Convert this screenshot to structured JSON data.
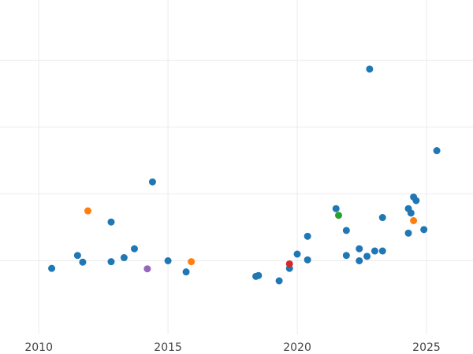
{
  "chart_data": {
    "type": "scatter",
    "title": "",
    "xlabel": "",
    "ylabel": "",
    "xlim": [
      2008.5,
      2026.8
    ],
    "ylim": [
      -1.65,
      5.85
    ],
    "x_ticks": [
      2010,
      2015,
      2020,
      2025
    ],
    "x_tick_labels": [
      "2010",
      "2015",
      "2020",
      "2025"
    ],
    "y_gridlines": [
      0,
      1.5,
      3,
      4.5
    ],
    "show_y_tick_labels": false,
    "grid": true,
    "legend": "none",
    "series": [
      {
        "color": "#1f77b4",
        "points": [
          {
            "x": 2010.5,
            "y": -0.17
          },
          {
            "x": 2011.5,
            "y": 0.12
          },
          {
            "x": 2011.7,
            "y": -0.03
          },
          {
            "x": 2012.8,
            "y": 0.87
          },
          {
            "x": 2012.8,
            "y": -0.02
          },
          {
            "x": 2013.3,
            "y": 0.07
          },
          {
            "x": 2013.7,
            "y": 0.27
          },
          {
            "x": 2014.4,
            "y": 1.77
          },
          {
            "x": 2015.0,
            "y": 0.0
          },
          {
            "x": 2015.7,
            "y": -0.25
          },
          {
            "x": 2018.4,
            "y": -0.35
          },
          {
            "x": 2018.5,
            "y": -0.33
          },
          {
            "x": 2019.3,
            "y": -0.45
          },
          {
            "x": 2019.7,
            "y": -0.17
          },
          {
            "x": 2020.0,
            "y": 0.15
          },
          {
            "x": 2020.4,
            "y": 0.02
          },
          {
            "x": 2020.4,
            "y": 0.55
          },
          {
            "x": 2021.5,
            "y": 1.17
          },
          {
            "x": 2021.9,
            "y": 0.68
          },
          {
            "x": 2021.9,
            "y": 0.12
          },
          {
            "x": 2022.4,
            "y": 0.27
          },
          {
            "x": 2022.4,
            "y": 0.0
          },
          {
            "x": 2022.7,
            "y": 0.1
          },
          {
            "x": 2022.8,
            "y": 4.3
          },
          {
            "x": 2023.0,
            "y": 0.22
          },
          {
            "x": 2023.3,
            "y": 0.22
          },
          {
            "x": 2023.3,
            "y": 0.97
          },
          {
            "x": 2024.3,
            "y": 0.62
          },
          {
            "x": 2024.3,
            "y": 1.17
          },
          {
            "x": 2024.4,
            "y": 1.07
          },
          {
            "x": 2024.5,
            "y": 1.43
          },
          {
            "x": 2024.6,
            "y": 1.35
          },
          {
            "x": 2024.9,
            "y": 0.7
          },
          {
            "x": 2025.4,
            "y": 2.47
          }
        ]
      },
      {
        "color": "#ff7f0e",
        "points": [
          {
            "x": 2011.9,
            "y": 1.12
          },
          {
            "x": 2015.9,
            "y": -0.02
          },
          {
            "x": 2024.5,
            "y": 0.9
          }
        ]
      },
      {
        "color": "#2ca02c",
        "points": [
          {
            "x": 2021.6,
            "y": 1.02
          }
        ]
      },
      {
        "color": "#d62728",
        "points": [
          {
            "x": 2019.7,
            "y": -0.07
          }
        ]
      },
      {
        "color": "#9467bd",
        "points": [
          {
            "x": 2014.2,
            "y": -0.18
          }
        ]
      }
    ]
  }
}
